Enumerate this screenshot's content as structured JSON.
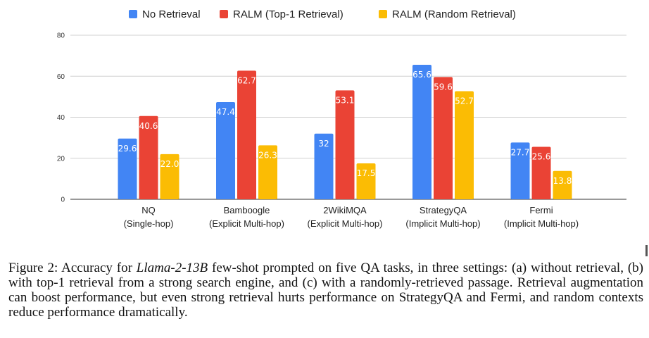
{
  "chart_data": {
    "type": "bar",
    "categories": [
      [
        "NQ",
        "(Single-hop)"
      ],
      [
        "Bamboogle",
        "(Explicit Multi-hop)"
      ],
      [
        "2WikiMQA",
        "(Explicit Multi-hop)"
      ],
      [
        "StrategyQA",
        "(Implicit Multi-hop)"
      ],
      [
        "Fermi",
        "(Implicit Multi-hop)"
      ]
    ],
    "series": [
      {
        "name": "No Retrieval",
        "color": "#4285F4",
        "values": [
          29.6,
          47.4,
          32,
          65.6,
          27.7
        ],
        "labels": [
          "29.6",
          "47.4",
          "32",
          "65.6",
          "27.7"
        ]
      },
      {
        "name": "RALM (Top-1 Retrieval)",
        "color": "#EA4335",
        "values": [
          40.6,
          62.7,
          53.1,
          59.6,
          25.6
        ],
        "labels": [
          "40.6",
          "62.7",
          "53.1",
          "59.6",
          "25.6"
        ]
      },
      {
        "name": "RALM (Random Retrieval)",
        "color": "#FBBC04",
        "values": [
          22.0,
          26.3,
          17.5,
          52.7,
          13.8
        ],
        "labels": [
          "22.0",
          "26.3",
          "17.5",
          "52.7",
          "13.8"
        ]
      }
    ],
    "yticks": [
      "0",
      "20",
      "40",
      "60",
      "80"
    ],
    "ylim": [
      0,
      80
    ],
    "grid": true,
    "legend_position": "top-center"
  },
  "caption": {
    "prefix": "Figure 2: Accuracy for ",
    "model": "Llama-2-13B",
    "body": " few-shot prompted on five QA tasks, in three settings: (a) without retrieval, (b) with top-1 retrieval from a strong search engine, and (c) with a randomly-retrieved passage. Retrieval augmentation can boost performance, but even strong retrieval hurts performance on StrategyQA and Fermi, and random contexts reduce performance dramatically."
  }
}
